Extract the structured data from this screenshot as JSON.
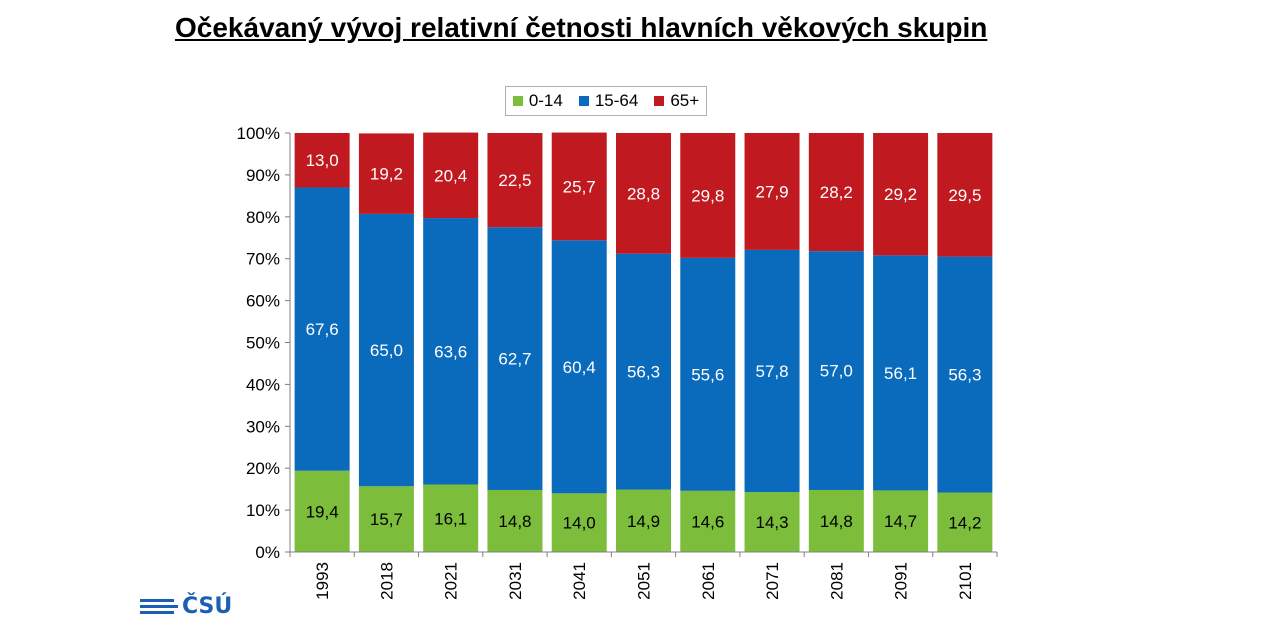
{
  "title": "Očekávaný vývoj relativní četnosti hlavních věkových skupin",
  "logo_text": "ČSÚ",
  "colors": {
    "0-14": "#7cbd3c",
    "15-64": "#0a6bbd",
    "65+": "#c0191f"
  },
  "chart_data": {
    "type": "bar",
    "stacked": true,
    "categories": [
      "1993",
      "2018",
      "2021",
      "2031",
      "2041",
      "2051",
      "2061",
      "2071",
      "2081",
      "2091",
      "2101"
    ],
    "series": [
      {
        "name": "0-14",
        "values": [
          19.4,
          15.7,
          16.1,
          14.8,
          14.0,
          14.9,
          14.6,
          14.3,
          14.8,
          14.7,
          14.2
        ],
        "labels": [
          "19,4",
          "15,7",
          "16,1",
          "14,8",
          "14,0",
          "14,9",
          "14,6",
          "14,3",
          "14,8",
          "14,7",
          "14,2"
        ]
      },
      {
        "name": "15-64",
        "values": [
          67.6,
          65.0,
          63.6,
          62.7,
          60.4,
          56.3,
          55.6,
          57.8,
          57.0,
          56.1,
          56.3
        ],
        "labels": [
          "67,6",
          "65,0",
          "63,6",
          "62,7",
          "60,4",
          "56,3",
          "55,6",
          "57,8",
          "57,0",
          "56,1",
          "56,3"
        ]
      },
      {
        "name": "65+",
        "values": [
          13.0,
          19.2,
          20.4,
          22.5,
          25.7,
          28.8,
          29.8,
          27.9,
          28.2,
          29.2,
          29.5
        ],
        "labels": [
          "13,0",
          "19,2",
          "20,4",
          "22,5",
          "25,7",
          "28,8",
          "29,8",
          "27,9",
          "28,2",
          "29,2",
          "29,5"
        ]
      }
    ],
    "y_ticks": [
      "0%",
      "10%",
      "20%",
      "30%",
      "40%",
      "50%",
      "60%",
      "70%",
      "80%",
      "90%",
      "100%"
    ],
    "ylim": [
      0,
      100
    ],
    "grid": false,
    "legend_position": "top-center"
  }
}
